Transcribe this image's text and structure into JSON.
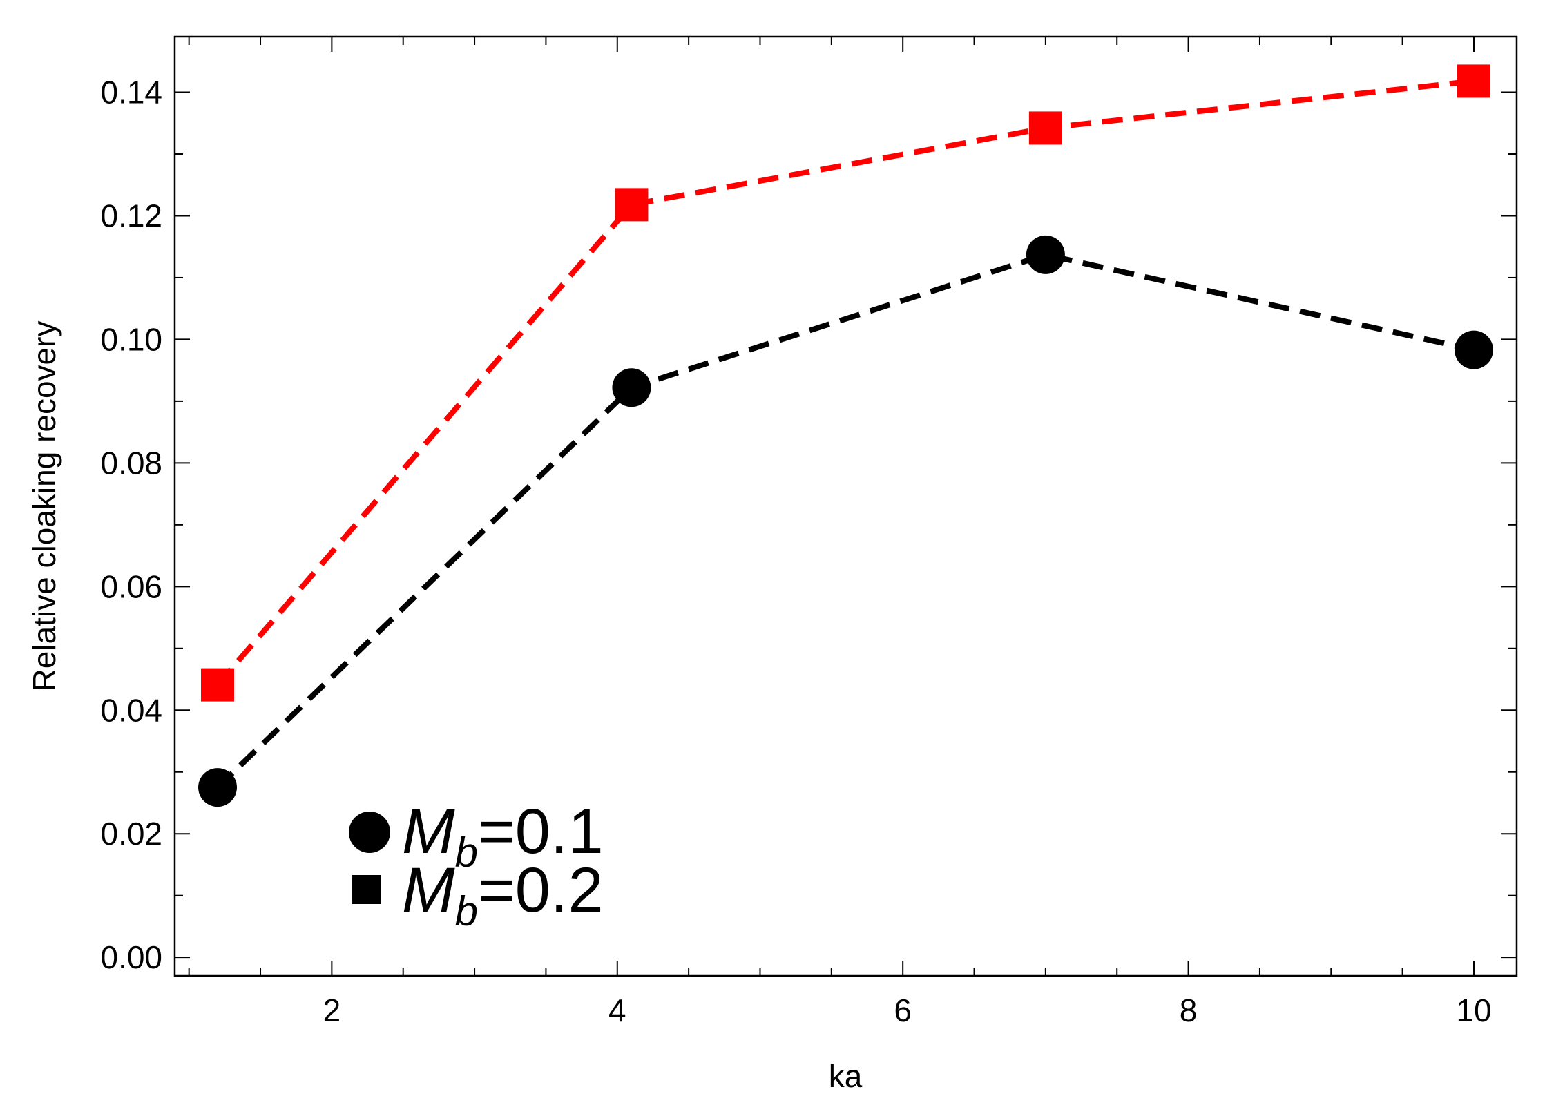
{
  "chart_data": {
    "type": "line",
    "xlabel": "ka",
    "ylabel": "Relative cloaking recovery",
    "xlim": [
      0.9,
      10.3
    ],
    "ylim": [
      -0.003,
      0.149
    ],
    "xticks": [
      2,
      4,
      6,
      8,
      10
    ],
    "xtick_labels": [
      "2",
      "4",
      "6",
      "8",
      "10"
    ],
    "yticks": [
      0.0,
      0.02,
      0.04,
      0.06,
      0.08,
      0.1,
      0.12,
      0.14
    ],
    "ytick_labels": [
      "0.00",
      "0.02",
      "0.04",
      "0.06",
      "0.08",
      "0.10",
      "0.12",
      "0.14"
    ],
    "grid": false,
    "legend_position": "bottom-left",
    "series": [
      {
        "name": "M_b=0.1",
        "legend": {
          "symbol": "M",
          "subscript": "b",
          "suffix": "=0.1"
        },
        "marker": "circle",
        "line_style": "dashed",
        "color": "#000000",
        "x": [
          1.2,
          4.1,
          7.0,
          10.0
        ],
        "y": [
          0.0275,
          0.0922,
          0.1137,
          0.0983
        ]
      },
      {
        "name": "M_b=0.2",
        "legend": {
          "symbol": "M",
          "subscript": "b",
          "suffix": "=0.2"
        },
        "marker": "square",
        "line_style": "dashed",
        "color": "#ff0000",
        "x": [
          1.2,
          4.1,
          7.0,
          10.0
        ],
        "y": [
          0.0441,
          0.1218,
          0.1342,
          0.1418
        ]
      }
    ]
  }
}
